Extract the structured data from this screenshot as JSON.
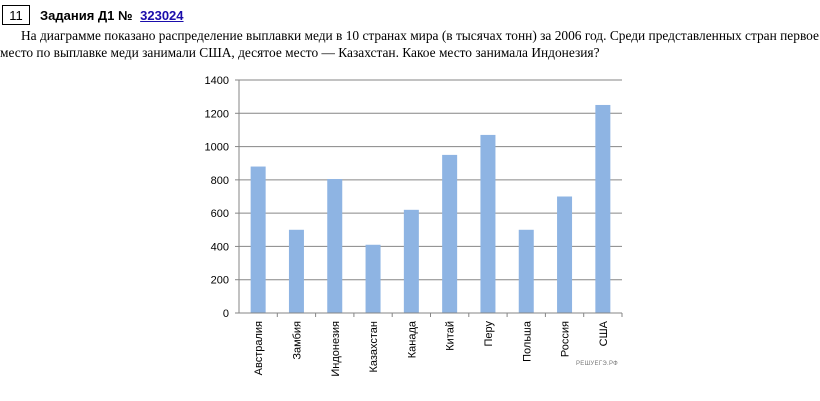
{
  "task": {
    "number": "11",
    "section": "Задания Д1",
    "id_prefix": "№",
    "id": "323024"
  },
  "question": "На диаграмме показано распределение выплавки меди в 10 странах мира (в тысячах тонн) за 2006 год. Среди представленных стран первое место по выплавке меди занимали США, десятое место — Казахстан. Какое место занимала Индонезия?",
  "watermark": "РЕШУЕГЭ.РФ",
  "chart_data": {
    "type": "bar",
    "categories": [
      "Австралия",
      "Замбия",
      "Индонезия",
      "Казахстан",
      "Канада",
      "Китай",
      "Перу",
      "Польша",
      "Россия",
      "США"
    ],
    "values": [
      880,
      500,
      805,
      410,
      620,
      950,
      1070,
      500,
      700,
      1250
    ],
    "ylim": [
      0,
      1400
    ],
    "yticks": [
      0,
      200,
      400,
      600,
      800,
      1000,
      1200,
      1400
    ],
    "grid": true,
    "bar_color": "#8eb4e3",
    "title": "",
    "xlabel": "",
    "ylabel": ""
  }
}
